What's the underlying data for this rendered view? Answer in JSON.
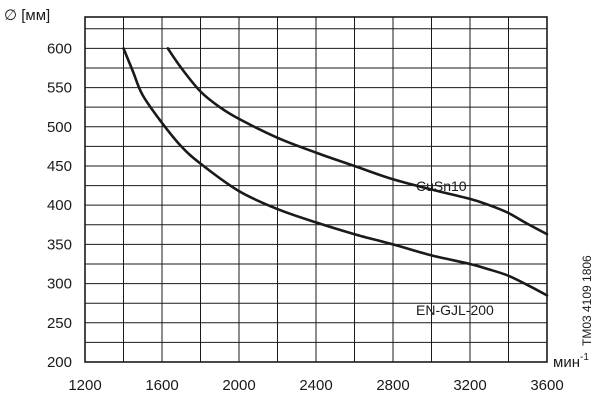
{
  "chart_data": {
    "type": "line",
    "ylabel": "∅ [мм]",
    "xlabel_base": "мин",
    "xlabel_exponent": "-1",
    "xlim": [
      1200,
      3600
    ],
    "ylim": [
      200,
      640
    ],
    "x_ticks": [
      1200,
      1600,
      2000,
      2400,
      2800,
      3200,
      3600
    ],
    "y_ticks": [
      200,
      250,
      300,
      350,
      400,
      450,
      500,
      550,
      600
    ],
    "x_grid_step": 200,
    "y_grid_step": 25,
    "grid": true,
    "series": [
      {
        "name": "CuSn10",
        "x": [
          1630,
          1700,
          1800,
          1900,
          2000,
          2200,
          2400,
          2600,
          2800,
          3000,
          3200,
          3300,
          3400,
          3500,
          3600
        ],
        "y": [
          600,
          575,
          545,
          525,
          510,
          486,
          467,
          450,
          433,
          420,
          408,
          400,
          390,
          376,
          363
        ]
      },
      {
        "name": "EN-GJL-200",
        "x": [
          1400,
          1450,
          1500,
          1600,
          1700,
          1800,
          2000,
          2200,
          2400,
          2600,
          2800,
          3000,
          3200,
          3300,
          3400,
          3500,
          3600
        ],
        "y": [
          600,
          570,
          540,
          505,
          475,
          453,
          418,
          395,
          378,
          363,
          350,
          336,
          325,
          318,
          310,
          298,
          285
        ]
      }
    ]
  },
  "figure_code": "TM03 4109 1806"
}
